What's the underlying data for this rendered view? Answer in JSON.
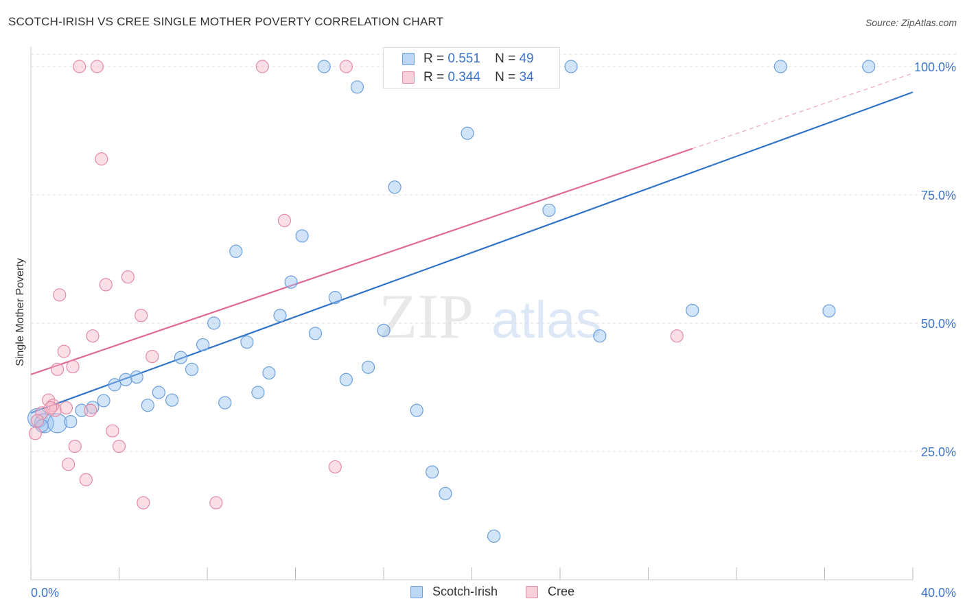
{
  "title": "SCOTCH-IRISH VS CREE SINGLE MOTHER POVERTY CORRELATION CHART",
  "source": "Source: ZipAtlas.com",
  "watermark": {
    "part1": "ZIP",
    "part2": "atlas"
  },
  "legend": [
    {
      "r_label": "R =",
      "r_value": "0.551",
      "n_label": "N =",
      "n_value": "49",
      "color": "#9cc3ef",
      "border": "#6a9fdc"
    },
    {
      "r_label": "R =",
      "r_value": "0.344",
      "n_label": "N =",
      "n_value": "34",
      "color": "#f6b8c8",
      "border": "#e48aa6"
    }
  ],
  "chart_data": {
    "type": "scatter",
    "title": "SCOTCH-IRISH VS CREE SINGLE MOTHER POVERTY CORRELATION CHART",
    "xlabel": "",
    "ylabel": "Single Mother Poverty",
    "xlim": [
      0,
      40
    ],
    "ylim": [
      0,
      105
    ],
    "x_tick_labels": [
      "0.0%",
      "40.0%"
    ],
    "y_ticks": [
      25,
      50,
      75,
      100
    ],
    "y_tick_labels": [
      "25.0%",
      "50.0%",
      "75.0%",
      "100.0%"
    ],
    "grid": "horizontal dashed",
    "legend_position": "top-center",
    "series": [
      {
        "name": "Scotch-Irish",
        "color": "#9cc3ef",
        "stroke": "#6a9fdc",
        "line_color": "#2f72c8",
        "trend": {
          "x": [
            0,
            40
          ],
          "y": [
            32.5,
            95.0
          ]
        },
        "points": [
          [
            0.3,
            31.5
          ],
          [
            0.6,
            30.5
          ],
          [
            1.2,
            30.5
          ],
          [
            1.8,
            30.8
          ],
          [
            2.3,
            33.0
          ],
          [
            2.8,
            33.6
          ],
          [
            3.3,
            34.9
          ],
          [
            3.8,
            38.0
          ],
          [
            4.3,
            39.0
          ],
          [
            4.8,
            39.5
          ],
          [
            5.3,
            34.0
          ],
          [
            5.8,
            36.5
          ],
          [
            6.4,
            35.0
          ],
          [
            6.8,
            43.3
          ],
          [
            7.3,
            41.0
          ],
          [
            7.8,
            45.8
          ],
          [
            8.3,
            50.0
          ],
          [
            8.8,
            34.5
          ],
          [
            9.3,
            64.0
          ],
          [
            9.8,
            46.3
          ],
          [
            10.3,
            36.5
          ],
          [
            10.8,
            40.3
          ],
          [
            11.3,
            51.5
          ],
          [
            11.8,
            58.0
          ],
          [
            12.3,
            67.0
          ],
          [
            12.9,
            48.0
          ],
          [
            13.3,
            100.0
          ],
          [
            13.8,
            55.0
          ],
          [
            14.3,
            39.0
          ],
          [
            14.8,
            96.0
          ],
          [
            15.3,
            41.4
          ],
          [
            16.0,
            48.6
          ],
          [
            16.5,
            76.5
          ],
          [
            17.5,
            33.0
          ],
          [
            18.2,
            21.0
          ],
          [
            18.8,
            16.8
          ],
          [
            19.3,
            100.0
          ],
          [
            19.8,
            87.0
          ],
          [
            21.0,
            8.5
          ],
          [
            22.0,
            100.0
          ],
          [
            23.0,
            100.0
          ],
          [
            23.5,
            72.0
          ],
          [
            24.5,
            100.0
          ],
          [
            25.8,
            47.5
          ],
          [
            30.0,
            52.5
          ],
          [
            34.0,
            100.0
          ],
          [
            36.2,
            52.4
          ],
          [
            38.0,
            100.0
          ],
          [
            0.5,
            30.0
          ]
        ]
      },
      {
        "name": "Cree",
        "color": "#f6b8c8",
        "stroke": "#e48aa6",
        "line_color": "#e06a92",
        "trend": {
          "x": [
            0,
            30
          ],
          "y": [
            40.0,
            84.0
          ]
        },
        "trend_extension": {
          "x": [
            30,
            40
          ],
          "y": [
            84.0,
            98.7
          ]
        },
        "points": [
          [
            0.2,
            28.5
          ],
          [
            0.5,
            32.5
          ],
          [
            0.8,
            35.0
          ],
          [
            1.0,
            34.0
          ],
          [
            1.1,
            33.0
          ],
          [
            1.2,
            41.0
          ],
          [
            1.3,
            55.5
          ],
          [
            1.5,
            44.5
          ],
          [
            1.6,
            33.5
          ],
          [
            1.7,
            22.5
          ],
          [
            1.9,
            41.5
          ],
          [
            2.0,
            26.0
          ],
          [
            2.2,
            100.0
          ],
          [
            2.5,
            19.5
          ],
          [
            2.7,
            33.0
          ],
          [
            2.8,
            47.5
          ],
          [
            3.0,
            100.0
          ],
          [
            3.2,
            82.0
          ],
          [
            3.4,
            57.5
          ],
          [
            3.7,
            29.0
          ],
          [
            4.0,
            26.0
          ],
          [
            4.4,
            59.0
          ],
          [
            5.0,
            51.5
          ],
          [
            5.1,
            15.0
          ],
          [
            5.5,
            43.5
          ],
          [
            8.4,
            15.0
          ],
          [
            10.5,
            100.0
          ],
          [
            11.5,
            70.0
          ],
          [
            13.8,
            22.0
          ],
          [
            14.3,
            100.0
          ],
          [
            20.0,
            100.0
          ],
          [
            29.3,
            47.5
          ],
          [
            0.3,
            31.0
          ],
          [
            0.9,
            33.5
          ]
        ]
      }
    ]
  },
  "bottom_legend": [
    {
      "label": "Scotch-Irish",
      "color": "#9cc3ef",
      "border": "#6a9fdc"
    },
    {
      "label": "Cree",
      "color": "#f6b8c8",
      "border": "#e48aa6"
    }
  ]
}
